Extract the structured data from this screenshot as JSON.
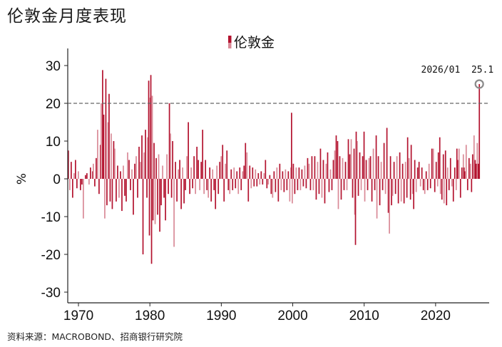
{
  "page": {
    "title": "伦敦金月度表现",
    "source": "资料来源：MACROBOND、招商银行研究院"
  },
  "colors": {
    "bar_dark": "#b3122e",
    "bar_light": "#d98a97",
    "axis": "#222222",
    "dashed_line": "#666666",
    "marker": "#8a8a8a"
  },
  "chart_data": {
    "type": "bar",
    "title": "",
    "xlabel": "",
    "ylabel": "%",
    "ylim": [
      -32,
      32
    ],
    "xlim": [
      1968.5,
      2027.5
    ],
    "yticks": [
      30,
      20,
      10,
      0,
      -10,
      -20,
      -30
    ],
    "xticks": [
      1970,
      1980,
      1990,
      2000,
      2010,
      2020
    ],
    "legend": {
      "label": "伦敦金",
      "position": "top-center"
    },
    "reference_line": {
      "y": 20,
      "style": "dashed"
    },
    "annotation": {
      "date": "2026/01",
      "value": 25.1,
      "label": "2026/01  25.1"
    },
    "grid": false,
    "series": [
      {
        "name": "伦敦金",
        "note": "monthly % change; x = decimal year",
        "points": [
          [
            1968.5,
            7.5
          ],
          [
            1968.7,
            -3
          ],
          [
            1968.9,
            4.5
          ],
          [
            1969.1,
            -5
          ],
          [
            1969.3,
            1.5
          ],
          [
            1969.5,
            5
          ],
          [
            1969.7,
            -2.5
          ],
          [
            1969.9,
            2
          ],
          [
            1970.2,
            -3
          ],
          [
            1970.4,
            -1.5
          ],
          [
            1970.6,
            -10.5
          ],
          [
            1970.9,
            1
          ],
          [
            1971.1,
            1.5
          ],
          [
            1971.4,
            -1.5
          ],
          [
            1971.6,
            3
          ],
          [
            1971.9,
            2
          ],
          [
            1972.0,
            4
          ],
          [
            1972.2,
            -2
          ],
          [
            1972.4,
            5.5
          ],
          [
            1972.6,
            13
          ],
          [
            1972.8,
            -4
          ],
          [
            1973.0,
            9
          ],
          [
            1973.1,
            20
          ],
          [
            1973.3,
            28.8
          ],
          [
            1973.45,
            17
          ],
          [
            1973.6,
            -10.5
          ],
          [
            1973.75,
            26.5
          ],
          [
            1973.9,
            -7
          ],
          [
            1974.05,
            15
          ],
          [
            1974.2,
            22.5
          ],
          [
            1974.35,
            -6
          ],
          [
            1974.5,
            12
          ],
          [
            1974.65,
            -8
          ],
          [
            1974.85,
            10
          ],
          [
            1975.0,
            8
          ],
          [
            1975.2,
            -6
          ],
          [
            1975.4,
            3.5
          ],
          [
            1975.6,
            -5
          ],
          [
            1975.8,
            2
          ],
          [
            1976.0,
            -8.5
          ],
          [
            1976.2,
            3.5
          ],
          [
            1976.4,
            -4.5
          ],
          [
            1976.6,
            -6
          ],
          [
            1976.8,
            7
          ],
          [
            1977.0,
            5
          ],
          [
            1977.2,
            -3
          ],
          [
            1977.4,
            2.5
          ],
          [
            1977.6,
            -9.5
          ],
          [
            1977.8,
            4
          ],
          [
            1978.0,
            6
          ],
          [
            1978.2,
            -5
          ],
          [
            1978.4,
            8.5
          ],
          [
            1978.6,
            4.5
          ],
          [
            1978.8,
            11.5
          ],
          [
            1978.95,
            -20
          ],
          [
            1979.1,
            7
          ],
          [
            1979.3,
            13
          ],
          [
            1979.5,
            -5
          ],
          [
            1979.6,
            11
          ],
          [
            1979.75,
            26
          ],
          [
            1979.85,
            -15
          ],
          [
            1979.95,
            21.5
          ],
          [
            1980.05,
            27.5
          ],
          [
            1980.15,
            -22.5
          ],
          [
            1980.25,
            22
          ],
          [
            1980.35,
            -11
          ],
          [
            1980.5,
            9.5
          ],
          [
            1980.65,
            -12
          ],
          [
            1980.8,
            5.5
          ],
          [
            1981.0,
            -9.5
          ],
          [
            1981.15,
            6.5
          ],
          [
            1981.3,
            -14
          ],
          [
            1981.5,
            -7
          ],
          [
            1981.7,
            3.5
          ],
          [
            1981.9,
            -5
          ],
          [
            1982.1,
            -11
          ],
          [
            1982.3,
            6.5
          ],
          [
            1982.5,
            -4
          ],
          [
            1982.65,
            20
          ],
          [
            1982.8,
            12
          ],
          [
            1982.95,
            -5
          ],
          [
            1983.1,
            10
          ],
          [
            1983.3,
            -18
          ],
          [
            1983.5,
            4.5
          ],
          [
            1983.7,
            -6
          ],
          [
            1983.9,
            2.5
          ],
          [
            1984.1,
            5
          ],
          [
            1984.3,
            -8
          ],
          [
            1984.5,
            3
          ],
          [
            1984.7,
            -6.5
          ],
          [
            1984.9,
            -3
          ],
          [
            1985.1,
            6
          ],
          [
            1985.3,
            15
          ],
          [
            1985.5,
            -4
          ],
          [
            1985.7,
            3
          ],
          [
            1985.9,
            -2.5
          ],
          [
            1986.1,
            6
          ],
          [
            1986.3,
            -4
          ],
          [
            1986.5,
            8.5
          ],
          [
            1986.7,
            5
          ],
          [
            1986.9,
            -3
          ],
          [
            1987.1,
            4.5
          ],
          [
            1987.3,
            13
          ],
          [
            1987.5,
            -4
          ],
          [
            1987.7,
            5
          ],
          [
            1987.9,
            -3
          ],
          [
            1988.1,
            -5
          ],
          [
            1988.3,
            3
          ],
          [
            1988.5,
            -6
          ],
          [
            1988.7,
            2.5
          ],
          [
            1988.9,
            -3
          ],
          [
            1989.1,
            -8
          ],
          [
            1989.3,
            3.5
          ],
          [
            1989.5,
            -4
          ],
          [
            1989.7,
            4.5
          ],
          [
            1989.9,
            6
          ],
          [
            1990.1,
            9
          ],
          [
            1990.3,
            -6
          ],
          [
            1990.5,
            4
          ],
          [
            1990.7,
            7.5
          ],
          [
            1990.9,
            -3
          ],
          [
            1991.1,
            -4
          ],
          [
            1991.3,
            2.5
          ],
          [
            1991.5,
            -3
          ],
          [
            1991.7,
            3
          ],
          [
            1991.9,
            -2.5
          ],
          [
            1992.1,
            2
          ],
          [
            1992.3,
            -4
          ],
          [
            1992.5,
            3
          ],
          [
            1992.7,
            -3
          ],
          [
            1992.9,
            2
          ],
          [
            1993.1,
            3.5
          ],
          [
            1993.3,
            9.5
          ],
          [
            1993.5,
            7
          ],
          [
            1993.7,
            -6
          ],
          [
            1993.9,
            3.5
          ],
          [
            1994.1,
            -2.5
          ],
          [
            1994.3,
            3
          ],
          [
            1994.5,
            -2
          ],
          [
            1994.7,
            2.5
          ],
          [
            1994.9,
            -2
          ],
          [
            1995.1,
            1.5
          ],
          [
            1995.3,
            -1.5
          ],
          [
            1995.5,
            2
          ],
          [
            1995.7,
            -1.5
          ],
          [
            1995.9,
            1.5
          ],
          [
            1996.1,
            5
          ],
          [
            1996.3,
            -2.5
          ],
          [
            1996.5,
            -1.5
          ],
          [
            1996.7,
            1
          ],
          [
            1996.9,
            -4
          ],
          [
            1997.1,
            -5
          ],
          [
            1997.3,
            2
          ],
          [
            1997.5,
            -3.5
          ],
          [
            1997.7,
            3
          ],
          [
            1997.9,
            -6
          ],
          [
            1998.1,
            4
          ],
          [
            1998.3,
            -3
          ],
          [
            1998.5,
            2
          ],
          [
            1998.7,
            -3.5
          ],
          [
            1998.9,
            2.5
          ],
          [
            1999.1,
            -3
          ],
          [
            1999.3,
            2
          ],
          [
            1999.5,
            -6
          ],
          [
            1999.7,
            3
          ],
          [
            1999.75,
            17.5
          ],
          [
            1999.85,
            -6.5
          ],
          [
            2000.0,
            4
          ],
          [
            2000.2,
            -4
          ],
          [
            2000.4,
            3
          ],
          [
            2000.6,
            -3
          ],
          [
            2000.8,
            3
          ],
          [
            2001.0,
            -3
          ],
          [
            2001.2,
            2.5
          ],
          [
            2001.4,
            -2
          ],
          [
            2001.6,
            3.5
          ],
          [
            2001.8,
            -2.5
          ],
          [
            2002.0,
            5.5
          ],
          [
            2002.2,
            4
          ],
          [
            2002.4,
            -3
          ],
          [
            2002.6,
            6
          ],
          [
            2002.8,
            -3
          ],
          [
            2003.0,
            6
          ],
          [
            2003.2,
            -5.5
          ],
          [
            2003.4,
            4.5
          ],
          [
            2003.6,
            -4
          ],
          [
            2003.8,
            8
          ],
          [
            2004.0,
            -5
          ],
          [
            2004.2,
            5
          ],
          [
            2004.4,
            -6.5
          ],
          [
            2004.6,
            4
          ],
          [
            2004.8,
            7
          ],
          [
            2005.0,
            -3.5
          ],
          [
            2005.2,
            2.5
          ],
          [
            2005.4,
            -3
          ],
          [
            2005.6,
            5
          ],
          [
            2005.8,
            7.5
          ],
          [
            2006.0,
            11.5
          ],
          [
            2006.2,
            10
          ],
          [
            2006.3,
            -8
          ],
          [
            2006.5,
            6
          ],
          [
            2006.7,
            -5.5
          ],
          [
            2006.9,
            5.5
          ],
          [
            2007.1,
            -3
          ],
          [
            2007.3,
            4.5
          ],
          [
            2007.5,
            -3
          ],
          [
            2007.7,
            10.5
          ],
          [
            2007.9,
            6.5
          ],
          [
            2008.1,
            10.5
          ],
          [
            2008.3,
            -5
          ],
          [
            2008.5,
            8
          ],
          [
            2008.6,
            -9.5
          ],
          [
            2008.7,
            -17.5
          ],
          [
            2008.8,
            12.5
          ],
          [
            2008.95,
            10
          ],
          [
            2009.1,
            -4.5
          ],
          [
            2009.3,
            7
          ],
          [
            2009.5,
            -3
          ],
          [
            2009.7,
            6
          ],
          [
            2009.9,
            12.5
          ],
          [
            2010.0,
            -6
          ],
          [
            2010.2,
            5
          ],
          [
            2010.4,
            -3
          ],
          [
            2010.6,
            5.5
          ],
          [
            2010.8,
            6
          ],
          [
            2011.0,
            -6
          ],
          [
            2011.2,
            8
          ],
          [
            2011.4,
            -3
          ],
          [
            2011.6,
            11.5
          ],
          [
            2011.7,
            -10.5
          ],
          [
            2011.9,
            6
          ],
          [
            2012.1,
            -7
          ],
          [
            2012.3,
            4.5
          ],
          [
            2012.5,
            -3
          ],
          [
            2012.7,
            9.5
          ],
          [
            2012.9,
            -4
          ],
          [
            2013.1,
            13.5
          ],
          [
            2013.3,
            -9
          ],
          [
            2013.45,
            -14.5
          ],
          [
            2013.6,
            6
          ],
          [
            2013.75,
            -7
          ],
          [
            2013.9,
            -4.5
          ],
          [
            2014.1,
            4.5
          ],
          [
            2014.3,
            -4
          ],
          [
            2014.5,
            6
          ],
          [
            2014.7,
            -6.5
          ],
          [
            2014.9,
            7
          ],
          [
            2015.1,
            -6
          ],
          [
            2015.3,
            4
          ],
          [
            2015.5,
            -6.5
          ],
          [
            2015.7,
            4.5
          ],
          [
            2015.9,
            -5
          ],
          [
            2016.0,
            11
          ],
          [
            2016.2,
            5.5
          ],
          [
            2016.4,
            -5.5
          ],
          [
            2016.5,
            9
          ],
          [
            2016.7,
            -4
          ],
          [
            2016.85,
            -8
          ],
          [
            2017.0,
            5
          ],
          [
            2017.2,
            -3.5
          ],
          [
            2017.4,
            3
          ],
          [
            2017.6,
            4.5
          ],
          [
            2017.8,
            -2
          ],
          [
            2018.0,
            3
          ],
          [
            2018.2,
            -3
          ],
          [
            2018.4,
            -4
          ],
          [
            2018.6,
            2
          ],
          [
            2018.8,
            -3
          ],
          [
            2019.0,
            4
          ],
          [
            2019.2,
            -2.5
          ],
          [
            2019.4,
            8
          ],
          [
            2019.6,
            8
          ],
          [
            2019.8,
            -3.5
          ],
          [
            2020.0,
            4.5
          ],
          [
            2020.2,
            -2
          ],
          [
            2020.3,
            7
          ],
          [
            2020.5,
            11
          ],
          [
            2020.6,
            -4
          ],
          [
            2020.8,
            -5.5
          ],
          [
            2021.0,
            6.5
          ],
          [
            2021.1,
            -6.5
          ],
          [
            2021.3,
            7.5
          ],
          [
            2021.45,
            -7
          ],
          [
            2021.6,
            3
          ],
          [
            2021.8,
            -3
          ],
          [
            2022.0,
            5.5
          ],
          [
            2022.2,
            -2
          ],
          [
            2022.4,
            -6
          ],
          [
            2022.6,
            3
          ],
          [
            2022.8,
            -3
          ],
          [
            2022.9,
            8
          ],
          [
            2023.0,
            5
          ],
          [
            2023.2,
            8
          ],
          [
            2023.4,
            -5
          ],
          [
            2023.6,
            3
          ],
          [
            2023.8,
            6.5
          ],
          [
            2023.9,
            3
          ],
          [
            2024.0,
            2
          ],
          [
            2024.2,
            9
          ],
          [
            2024.4,
            -3
          ],
          [
            2024.6,
            5.5
          ],
          [
            2024.8,
            4
          ],
          [
            2024.95,
            -3.5
          ],
          [
            2025.1,
            6.5
          ],
          [
            2025.3,
            11.5
          ],
          [
            2025.45,
            5
          ],
          [
            2025.6,
            4
          ],
          [
            2025.75,
            9.5
          ],
          [
            2025.9,
            4
          ],
          [
            2026.04,
            25.1
          ]
        ]
      }
    ]
  }
}
